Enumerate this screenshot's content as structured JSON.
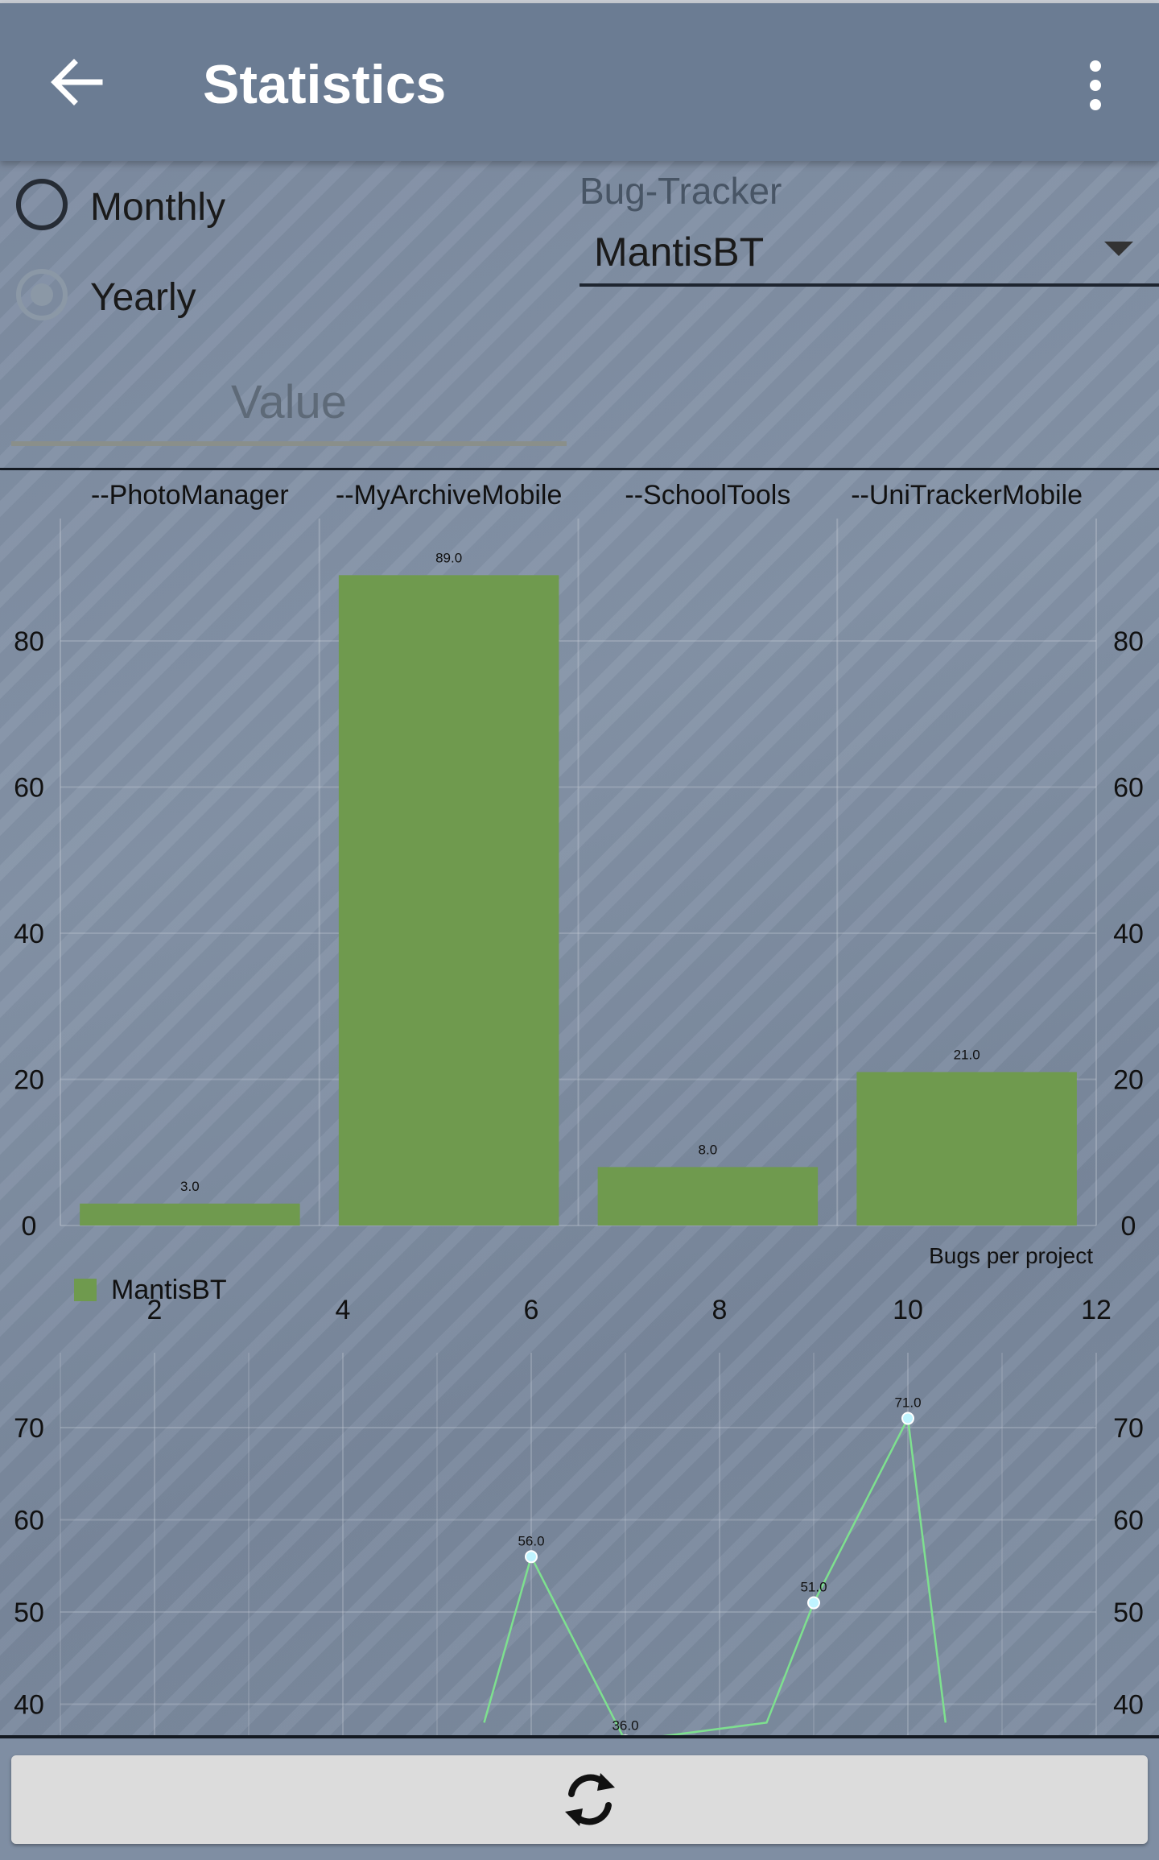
{
  "app_bar": {
    "title": "Statistics",
    "back_icon": "arrow-left-icon",
    "menu_icon": "more-vert-icon"
  },
  "period": {
    "options": [
      {
        "label": "Monthly",
        "selected": false
      },
      {
        "label": "Yearly",
        "selected": true
      }
    ]
  },
  "bug_tracker": {
    "label": "Bug-Tracker",
    "value": "MantisBT"
  },
  "value_input": {
    "placeholder": "Value",
    "value": ""
  },
  "refresh_button": {
    "icon": "refresh-icon"
  },
  "colors": {
    "bar": "#6f9a4e",
    "line": "#7ee08f",
    "point": "#bff4ff"
  },
  "chart_data": [
    {
      "type": "bar",
      "categories": [
        "--PhotoManager",
        "--MyArchiveMobile",
        "--SchoolTools",
        "--UniTrackerMobile"
      ],
      "values": [
        3.0,
        89.0,
        8.0,
        21.0
      ],
      "value_labels": [
        "3.0",
        "89.0",
        "8.0",
        "21.0"
      ],
      "ylim": [
        0,
        95
      ],
      "yticks": [
        0,
        20,
        40,
        60,
        80
      ],
      "description": "Bugs per project",
      "legend": [
        "MantisBT"
      ],
      "legend_position": "bottom-left",
      "grid": true
    },
    {
      "type": "line",
      "x": [
        5.5,
        6,
        7,
        8.5,
        9,
        10,
        10.4
      ],
      "y": [
        38,
        56,
        36,
        38,
        51,
        71,
        38
      ],
      "point_labels": [
        {
          "x": 6,
          "y": 56,
          "label": "56.0"
        },
        {
          "x": 7,
          "y": 36,
          "label": "36.0"
        },
        {
          "x": 9,
          "y": 51,
          "label": "51.0"
        },
        {
          "x": 10,
          "y": 71,
          "label": "71.0"
        }
      ],
      "xticks": [
        2,
        4,
        6,
        8,
        10,
        12
      ],
      "yticks": [
        40,
        50,
        60,
        70
      ],
      "xlim": [
        1,
        12
      ],
      "ylim": [
        36,
        76
      ],
      "grid": true
    }
  ]
}
